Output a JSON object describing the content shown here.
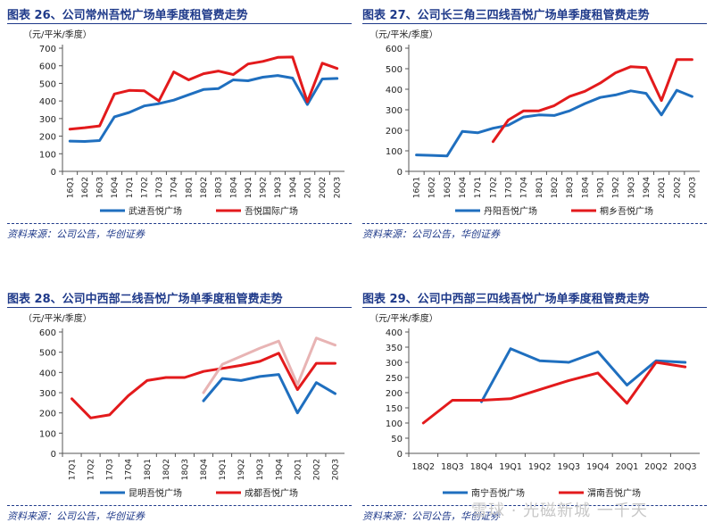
{
  "watermark": "雪球 · 光磁新城 一千天",
  "charts": [
    {
      "title": "图表 26、公司常州吾悦广场单季度租管费走势",
      "source": "资料来源：公司公告，华创证券",
      "unit": "（元/平米/季度）"
    },
    {
      "title": "图表 27、公司长三角三四线吾悦广场单季度租管费走势",
      "source": "资料来源：公司公告，华创证券",
      "unit": "（元/平米/季度）"
    },
    {
      "title": "图表 28、公司中西部二线吾悦广场单季度租管费走势",
      "source": "资料来源：公司公告，华创证券",
      "unit": "（元/平米/季度）"
    },
    {
      "title": "图表 29、公司中西部三四线吾悦广场单季度租管费走势",
      "source": "资料来源：公司公告，华创证券",
      "unit": "（元/平米/季度）"
    }
  ],
  "chart_data": [
    {
      "type": "line",
      "ylim": [
        0,
        700
      ],
      "yticks": [
        0,
        100,
        200,
        300,
        400,
        500,
        600,
        700
      ],
      "categories": [
        "16Q1",
        "16Q2",
        "16Q3",
        "16Q4",
        "17Q1",
        "17Q2",
        "17Q3",
        "17Q4",
        "18Q1",
        "18Q2",
        "18Q3",
        "18Q4",
        "19Q1",
        "19Q2",
        "19Q3",
        "19Q4",
        "20Q1",
        "20Q2",
        "20Q3"
      ],
      "series": [
        {
          "name": "武进吾悦广场",
          "color": "#1f6fbf",
          "values": [
            172,
            170,
            175,
            310,
            335,
            372,
            385,
            405,
            435,
            465,
            470,
            520,
            515,
            535,
            545,
            530,
            380,
            525,
            528
          ]
        },
        {
          "name": "吾悦国际广场",
          "color": "#e31a1c",
          "values": [
            240,
            248,
            258,
            440,
            460,
            458,
            400,
            565,
            520,
            555,
            570,
            550,
            610,
            625,
            648,
            650,
            395,
            615,
            585
          ]
        }
      ]
    },
    {
      "type": "line",
      "ylim": [
        0,
        600
      ],
      "yticks": [
        0,
        100,
        200,
        300,
        400,
        500,
        600
      ],
      "categories": [
        "16Q1",
        "16Q2",
        "16Q3",
        "16Q4",
        "17Q1",
        "17Q2",
        "17Q3",
        "17Q4",
        "18Q1",
        "18Q2",
        "18Q3",
        "18Q4",
        "19Q1",
        "19Q2",
        "19Q3",
        "19Q4",
        "20Q1",
        "20Q2",
        "20Q3"
      ],
      "series": [
        {
          "name": "丹阳吾悦广场",
          "color": "#1f6fbf",
          "values": [
            80,
            78,
            75,
            195,
            188,
            210,
            225,
            265,
            275,
            272,
            295,
            330,
            360,
            372,
            392,
            380,
            275,
            395,
            365
          ]
        },
        {
          "name": "桐乡吾悦广场",
          "color": "#e31a1c",
          "values": [
            null,
            null,
            null,
            null,
            null,
            145,
            250,
            295,
            295,
            320,
            365,
            390,
            430,
            480,
            510,
            505,
            345,
            545,
            545
          ]
        }
      ]
    },
    {
      "type": "line",
      "ylim": [
        0,
        600
      ],
      "yticks": [
        0,
        100,
        200,
        300,
        400,
        500,
        600
      ],
      "categories": [
        "17Q1",
        "17Q2",
        "17Q3",
        "17Q4",
        "18Q1",
        "18Q2",
        "18Q3",
        "18Q4",
        "19Q1",
        "19Q2",
        "19Q3",
        "19Q4",
        "20Q1",
        "20Q2",
        "20Q3"
      ],
      "series": [
        {
          "name": "昆明吾悦广场",
          "color": "#1f6fbf",
          "values": [
            null,
            null,
            null,
            null,
            null,
            null,
            null,
            260,
            370,
            360,
            380,
            390,
            200,
            350,
            295
          ]
        },
        {
          "name": "成都吾悦广场",
          "color": "#e31a1c",
          "values": [
            270,
            175,
            190,
            285,
            360,
            375,
            375,
            405,
            420,
            435,
            455,
            495,
            315,
            445,
            445
          ]
        },
        {
          "name": "",
          "color": "#e8b4b4",
          "values": [
            null,
            null,
            null,
            null,
            null,
            null,
            null,
            300,
            440,
            480,
            520,
            555,
            340,
            570,
            535
          ]
        }
      ]
    },
    {
      "type": "line",
      "ylim": [
        0,
        400
      ],
      "yticks": [
        0,
        50,
        100,
        150,
        200,
        250,
        300,
        350,
        400
      ],
      "categories": [
        "18Q2",
        "18Q3",
        "18Q4",
        "19Q1",
        "19Q2",
        "19Q3",
        "19Q4",
        "20Q1",
        "20Q2",
        "20Q3"
      ],
      "series": [
        {
          "name": "南宁吾悦广场",
          "color": "#1f6fbf",
          "values": [
            null,
            null,
            170,
            345,
            305,
            300,
            335,
            225,
            305,
            300
          ]
        },
        {
          "name": "渭南吾悦广场",
          "color": "#e31a1c",
          "values": [
            100,
            175,
            175,
            180,
            210,
            240,
            265,
            165,
            300,
            285
          ]
        }
      ]
    }
  ]
}
